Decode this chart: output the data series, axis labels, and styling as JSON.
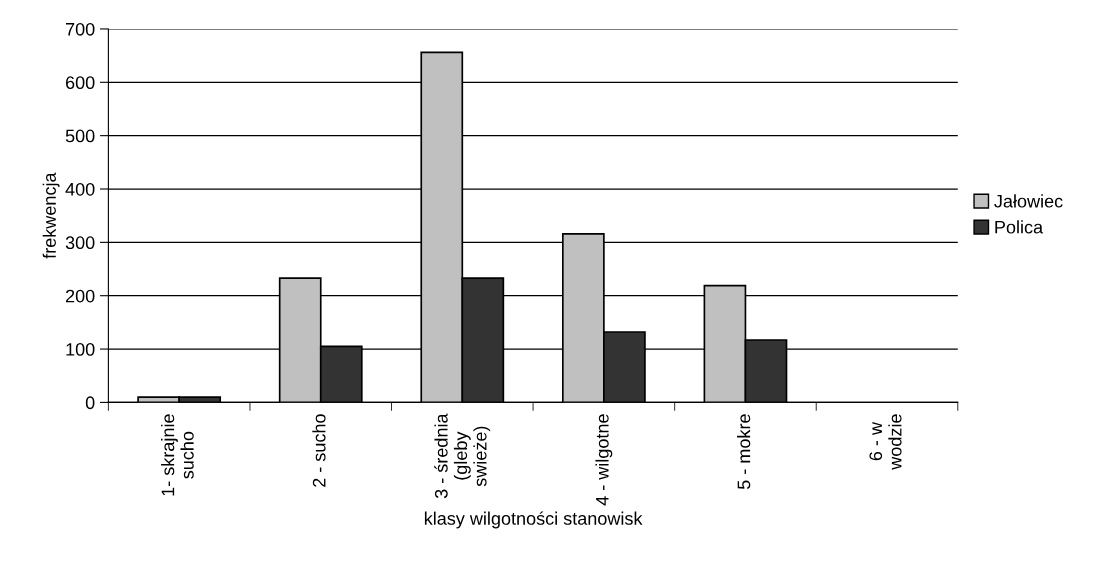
{
  "chart_data": {
    "type": "bar",
    "xlabel": "klasy wilgotności stanowisk",
    "ylabel": "frekwencja",
    "categories": [
      "1- skrajnie\nsucho",
      "2 - sucho",
      "3 - średnia\n(gleby\nswieże)",
      "4 - wilgotne",
      "5 - mokre",
      "6 - w\nwodzie"
    ],
    "series": [
      {
        "name": "Jałowiec",
        "color": "#c0c0c0",
        "values": [
          10,
          233,
          656,
          316,
          219,
          null
        ]
      },
      {
        "name": "Polica",
        "color": "#333333",
        "values": [
          10,
          105,
          233,
          132,
          117,
          null
        ]
      }
    ],
    "ylim": [
      0,
      700
    ],
    "yticks": [
      0,
      100,
      200,
      300,
      400,
      500,
      600,
      700
    ],
    "grid": "y",
    "legend": "right"
  }
}
